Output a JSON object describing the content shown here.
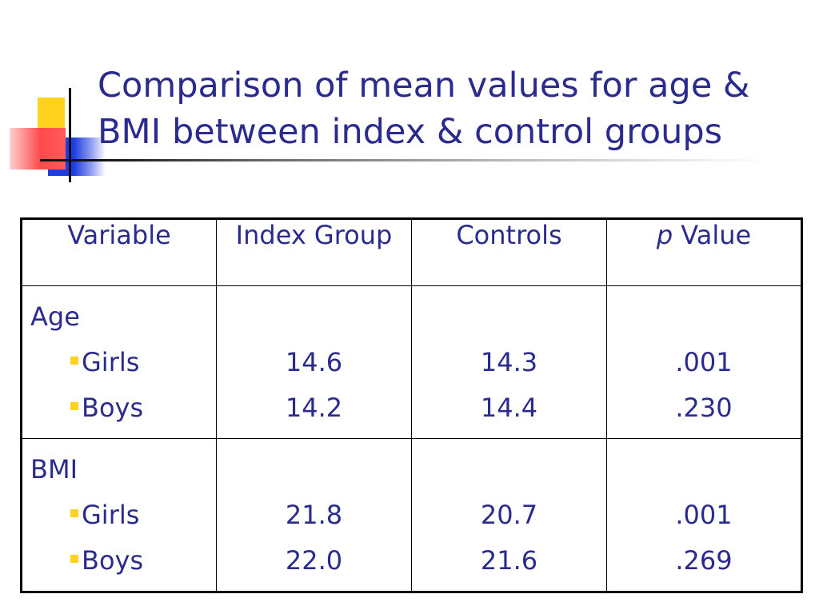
{
  "title": "Comparison of mean values for age & BMI between index & control groups",
  "table": {
    "headers": {
      "variable": "Variable",
      "index_group": "Index Group",
      "controls": "Controls",
      "p_italic": "p",
      "p_rest": " Value"
    },
    "groups": [
      {
        "name": "Age",
        "rows": [
          {
            "label": "Girls",
            "index": "14.6",
            "controls": "14.3",
            "p": ".001"
          },
          {
            "label": "Boys",
            "index": "14.2",
            "controls": "14.4",
            "p": ".230"
          }
        ]
      },
      {
        "name": "BMI",
        "rows": [
          {
            "label": "Girls",
            "index": "21.8",
            "controls": "20.7",
            "p": ".001"
          },
          {
            "label": "Boys",
            "index": "22.0",
            "controls": "21.6",
            "p": ".269"
          }
        ]
      }
    ]
  },
  "colors": {
    "text": "#2b2b8f",
    "bullet": "#ffd21e",
    "accent_yellow": "#ffd21e",
    "accent_blue": "#1e3de0",
    "accent_red": "#ff4a4a"
  }
}
